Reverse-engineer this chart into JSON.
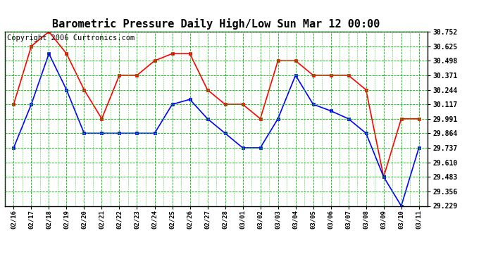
{
  "title": "Barometric Pressure Daily High/Low Sun Mar 12 00:00",
  "copyright": "Copyright 2006 Curtronics.com",
  "x_labels": [
    "02/16",
    "02/17",
    "02/18",
    "02/19",
    "02/20",
    "02/21",
    "02/22",
    "02/23",
    "02/24",
    "02/25",
    "02/26",
    "02/27",
    "02/28",
    "03/01",
    "03/02",
    "03/03",
    "03/04",
    "03/05",
    "03/06",
    "03/07",
    "03/08",
    "03/09",
    "03/10",
    "03/11"
  ],
  "high_values": [
    30.117,
    30.625,
    30.752,
    30.56,
    30.244,
    29.991,
    30.371,
    30.371,
    30.498,
    30.56,
    30.56,
    30.244,
    30.117,
    30.117,
    29.991,
    30.498,
    30.498,
    30.371,
    30.371,
    30.371,
    30.244,
    29.483,
    29.991,
    29.991
  ],
  "low_values": [
    29.737,
    30.117,
    30.56,
    30.244,
    29.864,
    29.864,
    29.864,
    29.864,
    29.864,
    30.117,
    30.16,
    29.991,
    29.864,
    29.737,
    29.737,
    29.991,
    30.371,
    30.117,
    30.06,
    29.991,
    29.864,
    29.483,
    29.229,
    29.737
  ],
  "y_ticks": [
    29.229,
    29.356,
    29.483,
    29.61,
    29.737,
    29.864,
    29.991,
    30.117,
    30.244,
    30.371,
    30.498,
    30.625,
    30.752
  ],
  "y_min": 29.229,
  "y_max": 30.752,
  "high_color": "#ff0000",
  "low_color": "#0000ff",
  "bg_color": "#ffffff",
  "plot_bg_color": "#ffffff",
  "grid_color": "#00bb00",
  "title_fontsize": 11,
  "copyright_fontsize": 7.5
}
